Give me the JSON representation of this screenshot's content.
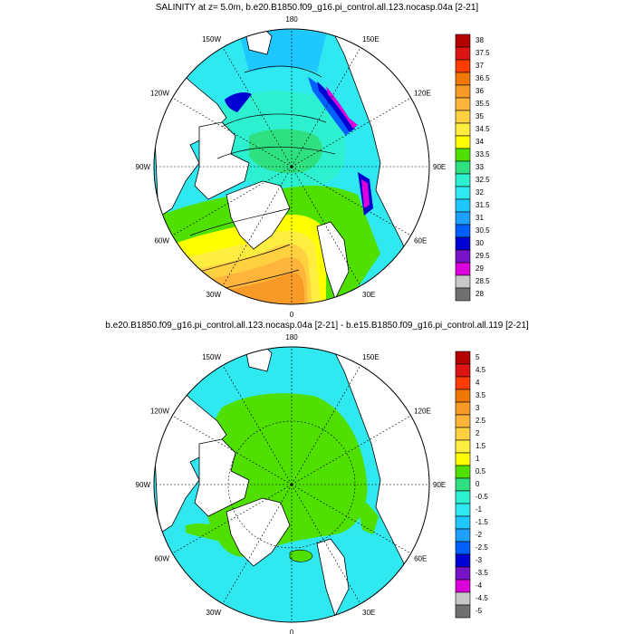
{
  "panels": [
    {
      "title": "SALINITY at z=   5.0m, b.e20.B1850.f09_g16.pi_control.all.123.nocasp.04a [2-21]",
      "lon_labels": [
        {
          "text": "180",
          "lon": 180
        },
        {
          "text": "150E",
          "lon": 150
        },
        {
          "text": "120E",
          "lon": 120
        },
        {
          "text": "90E",
          "lon": 90
        },
        {
          "text": "60E",
          "lon": 60
        },
        {
          "text": "30E",
          "lon": 30
        },
        {
          "text": "0",
          "lon": 0
        },
        {
          "text": "30W",
          "lon": -30
        },
        {
          "text": "60W",
          "lon": -60
        },
        {
          "text": "90W",
          "lon": -90
        },
        {
          "text": "120W",
          "lon": -120
        },
        {
          "text": "150W",
          "lon": -150
        }
      ],
      "colorbar": {
        "labels": [
          "38",
          "37.5",
          "37",
          "36.5",
          "36",
          "35.5",
          "35",
          "34.5",
          "34",
          "33.5",
          "33",
          "32.5",
          "32",
          "31.5",
          "31",
          "30.5",
          "30",
          "29.5",
          "29",
          "28.5",
          "28"
        ],
        "colors": [
          "#b40000",
          "#dc1414",
          "#ff3c00",
          "#f07800",
          "#f89a28",
          "#ffb43c",
          "#ffd040",
          "#ffee40",
          "#ffff00",
          "#50e000",
          "#2ee080",
          "#2cf0d0",
          "#30e8f0",
          "#1ec8ff",
          "#1ea0ff",
          "#0060ff",
          "#0000d2",
          "#7814c8",
          "#dc00dc",
          "#c8c8c8",
          "#707070"
        ]
      }
    },
    {
      "title": "b.e20.B1850.f09_g16.pi_control.all.123.nocasp.04a [2-21] - b.e15.B1850.f09_g16.pi_control.all.119 [2-21]",
      "lon_labels": [
        {
          "text": "180",
          "lon": 180
        },
        {
          "text": "150E",
          "lon": 150
        },
        {
          "text": "120E",
          "lon": 120
        },
        {
          "text": "90E",
          "lon": 90
        },
        {
          "text": "60E",
          "lon": 60
        },
        {
          "text": "30E",
          "lon": 30
        },
        {
          "text": "0",
          "lon": 0
        },
        {
          "text": "30W",
          "lon": -30
        },
        {
          "text": "60W",
          "lon": -60
        },
        {
          "text": "90W",
          "lon": -90
        },
        {
          "text": "120W",
          "lon": -120
        },
        {
          "text": "150W",
          "lon": -150
        }
      ],
      "colorbar": {
        "labels": [
          "5",
          "4.5",
          "4",
          "3.5",
          "3",
          "2.5",
          "2",
          "1.5",
          "1",
          "0.5",
          "0",
          "-0.5",
          "-1",
          "-1.5",
          "-2",
          "-2.5",
          "-3",
          "-3.5",
          "-4",
          "-4.5",
          "-5"
        ],
        "colors": [
          "#b40000",
          "#dc1414",
          "#ff3c00",
          "#f07800",
          "#f89a28",
          "#ffb43c",
          "#ffd040",
          "#ffee40",
          "#ffff00",
          "#50e000",
          "#2ee080",
          "#2cf0d0",
          "#30e8f0",
          "#1ec8ff",
          "#1ea0ff",
          "#0060ff",
          "#0000d2",
          "#7814c8",
          "#dc00dc",
          "#c8c8c8",
          "#707070"
        ]
      }
    }
  ]
}
